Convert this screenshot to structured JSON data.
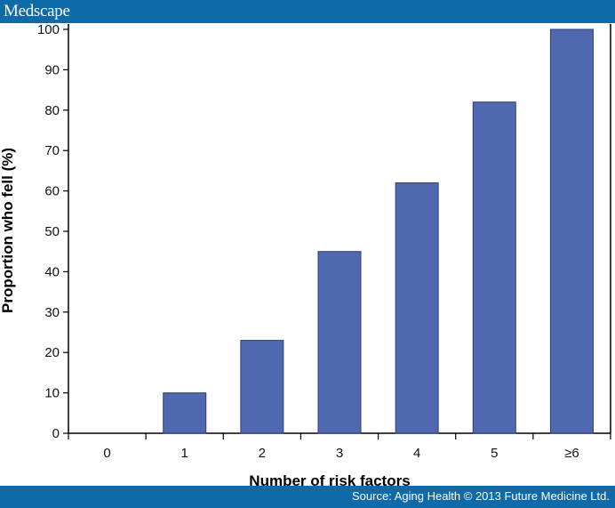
{
  "header": {
    "brand": "Medscape"
  },
  "footer": {
    "source": "Source: Aging Health © 2013 Future Medicine Ltd."
  },
  "colors": {
    "bar": "#5068b0",
    "bar_stroke": "#2f3f75",
    "bars_background": "#0e6aa8"
  },
  "chart_data": {
    "type": "bar",
    "title": "",
    "xlabel": "Number of risk factors",
    "ylabel": "Proportion who fell (%)",
    "categories": [
      "0",
      "1",
      "2",
      "3",
      "4",
      "5",
      "≥6"
    ],
    "values": [
      0,
      10,
      23,
      45,
      62,
      82,
      100
    ],
    "ylim": [
      0,
      100
    ],
    "yticks": [
      0,
      10,
      20,
      30,
      40,
      50,
      60,
      70,
      80,
      90,
      100
    ],
    "grid": false,
    "legend": "none"
  }
}
